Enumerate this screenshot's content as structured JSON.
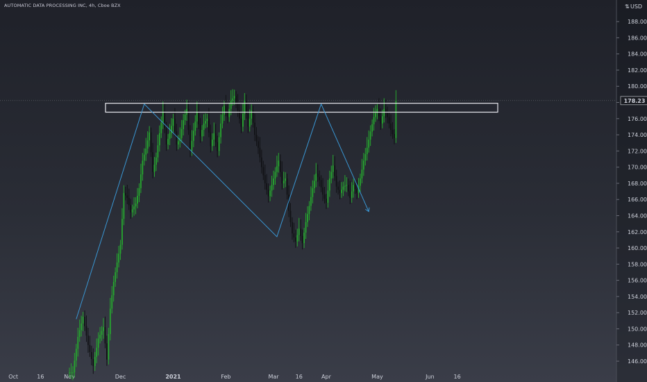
{
  "chart_title": "AUTOMATIC DATA PROCESSING INC, 4h, Cboe BZX",
  "colors": {
    "up": "#26a82f",
    "down": "#101114",
    "pattern": "#3a97d4",
    "rectangle": "#e8e8ee",
    "price_label_bg": "#1a1c22",
    "text": "#cfd2dc"
  },
  "chart_data": {
    "type": "candlestick",
    "title": "AUTOMATIC DATA PROCESSING INC, 4h, Cboe BZX",
    "ylabel": "USD",
    "ylim": [
      144.8,
      190.5
    ],
    "y_ticks": [
      146,
      148,
      150,
      152,
      154,
      156,
      158,
      160,
      162,
      164,
      166,
      168,
      170,
      172,
      174,
      176,
      178,
      180,
      182,
      184,
      186,
      188
    ],
    "x_ticks": [
      {
        "label": "Oct",
        "bold": false
      },
      {
        "label": "16",
        "bold": false
      },
      {
        "label": "Nov",
        "bold": false
      },
      {
        "label": "Dec",
        "bold": false
      },
      {
        "label": "2021",
        "bold": true
      },
      {
        "label": "Feb",
        "bold": false
      },
      {
        "label": "Mar",
        "bold": false
      },
      {
        "label": "16",
        "bold": false
      },
      {
        "label": "Apr",
        "bold": false
      },
      {
        "label": "May",
        "bold": false
      },
      {
        "label": "Jun",
        "bold": false
      },
      {
        "label": "16",
        "bold": false
      }
    ],
    "x_tick_days": [
      -33,
      -17,
      0,
      30,
      61,
      92,
      120,
      135,
      151,
      181,
      212,
      228
    ],
    "x_axis_start_label": "Nov",
    "last_price": 178.23,
    "last_price_label": "178.23",
    "grid": false,
    "candle_points": [
      [
        0,
        144.6
      ],
      [
        3,
        149.0
      ],
      [
        6,
        151.5
      ],
      [
        9,
        148.0
      ],
      [
        12,
        145.4
      ],
      [
        15,
        148.8
      ],
      [
        18,
        150.2
      ],
      [
        21,
        146.2
      ],
      [
        23,
        152.5
      ],
      [
        25,
        155.8
      ],
      [
        27,
        158.2
      ],
      [
        29,
        160.4
      ],
      [
        31,
        166.8
      ],
      [
        33,
        166.2
      ],
      [
        35,
        164.4
      ],
      [
        37,
        165.5
      ],
      [
        40,
        167.4
      ],
      [
        42,
        170.8
      ],
      [
        44,
        172.3
      ],
      [
        46,
        174.3
      ],
      [
        48,
        169.4
      ],
      [
        50,
        171.2
      ],
      [
        52,
        174.2
      ],
      [
        54,
        176.8
      ],
      [
        56,
        172.8
      ],
      [
        58,
        174.2
      ],
      [
        60,
        176.0
      ],
      [
        62,
        172.8
      ],
      [
        64,
        173.6
      ],
      [
        66,
        175.8
      ],
      [
        68,
        177.2
      ],
      [
        70,
        172.0
      ],
      [
        72,
        174.5
      ],
      [
        74,
        176.8
      ],
      [
        76,
        173.8
      ],
      [
        78,
        175.4
      ],
      [
        80,
        176.0
      ],
      [
        82,
        172.6
      ],
      [
        84,
        174.2
      ],
      [
        86,
        172.0
      ],
      [
        88,
        175.4
      ],
      [
        90,
        177.6
      ],
      [
        92,
        176.2
      ],
      [
        94,
        178.2
      ],
      [
        96,
        178.8
      ],
      [
        98,
        177.0
      ],
      [
        100,
        175.0
      ],
      [
        102,
        178.2
      ],
      [
        104,
        175.0
      ],
      [
        106,
        177.0
      ],
      [
        108,
        174.0
      ],
      [
        110,
        172.4
      ],
      [
        112,
        170.0
      ],
      [
        114,
        168.0
      ],
      [
        116,
        166.4
      ],
      [
        118,
        167.8
      ],
      [
        120,
        169.4
      ],
      [
        122,
        170.8
      ],
      [
        124,
        168.0
      ],
      [
        126,
        168.6
      ],
      [
        128,
        164.6
      ],
      [
        130,
        161.8
      ],
      [
        132,
        160.8
      ],
      [
        134,
        162.4
      ],
      [
        136,
        160.6
      ],
      [
        138,
        163.2
      ],
      [
        140,
        165.2
      ],
      [
        142,
        167.4
      ],
      [
        144,
        169.2
      ],
      [
        146,
        168.4
      ],
      [
        148,
        166.6
      ],
      [
        150,
        165.6
      ],
      [
        152,
        168.6
      ],
      [
        154,
        170.2
      ],
      [
        156,
        167.6
      ],
      [
        158,
        166.8
      ],
      [
        160,
        167.6
      ],
      [
        162,
        167.8
      ],
      [
        164,
        166.2
      ],
      [
        166,
        167.8
      ],
      [
        168,
        166.8
      ],
      [
        170,
        168.6
      ],
      [
        172,
        170.8
      ],
      [
        174,
        172.4
      ],
      [
        176,
        174.4
      ],
      [
        178,
        176.2
      ],
      [
        180,
        177.2
      ],
      [
        182,
        175.4
      ],
      [
        184,
        177.2
      ],
      [
        186,
        176.2
      ],
      [
        188,
        174.6
      ],
      [
        190,
        173.6
      ],
      [
        192,
        178.2
      ]
    ],
    "highs_lows": [
      {
        "label": "peak",
        "value": 179.4
      },
      {
        "label": "low",
        "value": 159.6
      },
      {
        "label": "start_low",
        "value": 144.6
      }
    ],
    "annotations": [
      {
        "type": "rectangle",
        "y_range": [
          176.8,
          177.9
        ]
      },
      {
        "type": "zigzag_path",
        "points": [
          [
            4,
            151.2
          ],
          [
            44,
            177.8
          ],
          [
            122,
            161.4
          ],
          [
            148,
            177.8
          ],
          [
            176,
            164.5
          ]
        ],
        "arrow_end": true
      }
    ]
  }
}
